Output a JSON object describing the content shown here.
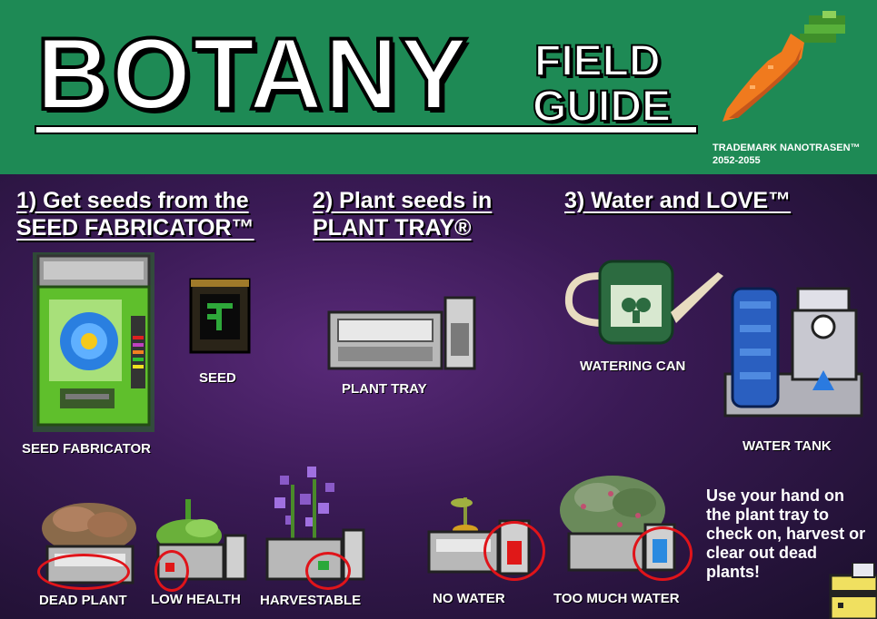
{
  "header": {
    "title": "BOTANY",
    "subtitle_line1": "FIELD",
    "subtitle_line2": "GUIDE",
    "trademark_line1": "TRADEMARK NANOTRASEN™",
    "trademark_line2": "2052-2055"
  },
  "steps": [
    {
      "line1": "1) Get seeds from the",
      "line2": "SEED FABRICATOR™"
    },
    {
      "line1": "2) Plant seeds in",
      "line2": "PLANT TRAY®"
    },
    {
      "line1": "3) Water and LOVE™",
      "line2": ""
    }
  ],
  "items": {
    "seed_fabricator": "SEED FABRICATOR",
    "seed": "SEED",
    "plant_tray": "PLANT TRAY",
    "watering_can": "WATERING CAN",
    "water_tank": "WATER TANK"
  },
  "states": {
    "dead_plant": "DEAD PLANT",
    "low_health": "LOW HEALTH",
    "harvestable": "HARVESTABLE",
    "no_water": "NO WATER",
    "too_much_water": "TOO MUCH WATER"
  },
  "instructions": "Use your hand on the plant tray to check on, harvest or clear out dead plants!",
  "icons": [
    "carrot-icon",
    "seed-fabricator-icon",
    "seed-packet-icon",
    "plant-tray-icon",
    "watering-can-icon",
    "water-tank-icon",
    "dead-plant-tray-icon",
    "low-health-tray-icon",
    "harvestable-tray-icon",
    "no-water-tray-icon",
    "too-much-water-tray-icon",
    "bee-icon"
  ],
  "colors": {
    "header_green": "#1e8a55",
    "indicator_red": "#e0141a"
  }
}
